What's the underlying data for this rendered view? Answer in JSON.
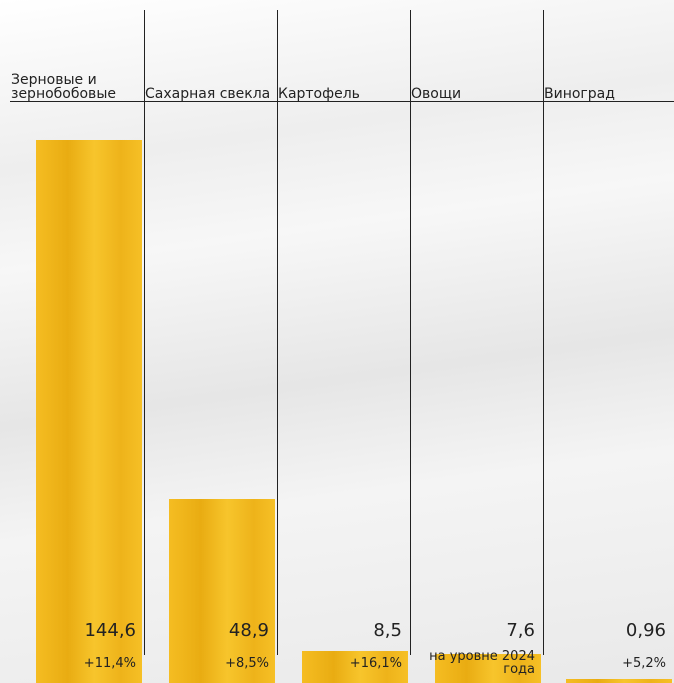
{
  "chart_data": {
    "type": "bar",
    "categories": [
      "Зерновые и зернобобовые",
      "Сахарная свекла",
      "Картофель",
      "Овощи",
      "Виноград"
    ],
    "values": [
      144.6,
      48.9,
      8.5,
      7.6,
      0.96
    ],
    "value_labels": [
      "144,6",
      "48,9",
      "8,5",
      "7,6",
      "0,96"
    ],
    "changes": [
      "+11,4%",
      "+8,5%",
      "+16,1%",
      "на уровне 2024 года",
      "+5,2%"
    ],
    "color": "#f2b620"
  }
}
